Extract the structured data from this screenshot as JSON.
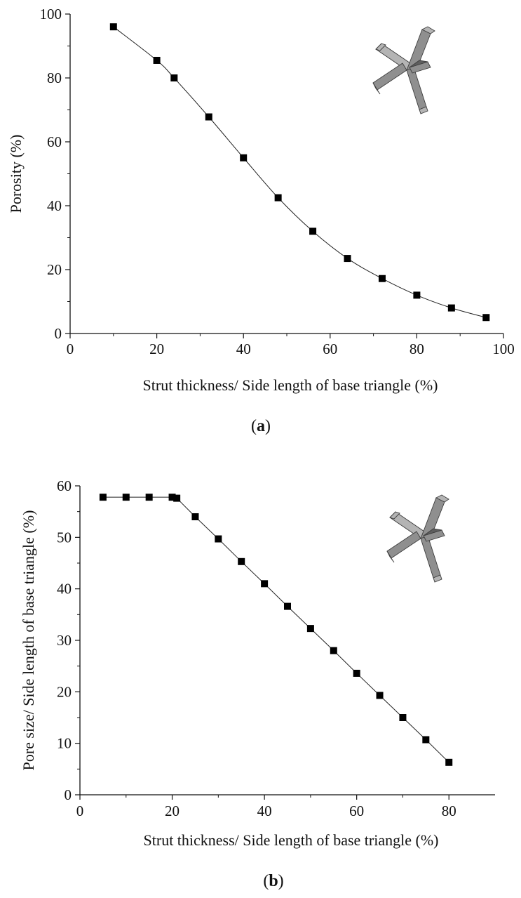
{
  "figure": {
    "caption_a": "a",
    "caption_b": "b"
  },
  "colors": {
    "axis": "#111111",
    "marker": "#000000",
    "line": "#222222",
    "strut_light": "#b4b4b4",
    "strut_mid": "#8f8f8f",
    "strut_dark": "#5e5e5e"
  },
  "chart_data": [
    {
      "id": "a",
      "type": "line",
      "marker": "square",
      "smooth": true,
      "title": "",
      "xlabel": "Strut thickness/ Side length of base triangle (%)",
      "ylabel": "Porosity (%)",
      "xlim": [
        0,
        100
      ],
      "ylim": [
        0,
        100
      ],
      "xticks": [
        0,
        20,
        40,
        60,
        80,
        100
      ],
      "yticks": [
        0,
        20,
        40,
        60,
        80,
        100
      ],
      "grid": false,
      "inset": "strut-unit-icon",
      "series": [
        {
          "x": [
            10,
            20,
            24,
            32,
            40,
            48,
            56,
            64,
            72,
            80,
            88,
            96
          ],
          "y": [
            96,
            85.5,
            80,
            67.8,
            55,
            42.5,
            32,
            23.5,
            17.2,
            12,
            8,
            5
          ]
        }
      ]
    },
    {
      "id": "b",
      "type": "line",
      "marker": "square",
      "smooth": false,
      "title": "",
      "xlabel": "Strut thickness/ Side length of base triangle (%)",
      "ylabel": "Pore size/ Side length of base triangle (%)",
      "xlim": [
        0,
        90
      ],
      "ylim": [
        0,
        60
      ],
      "xticks": [
        0,
        20,
        40,
        60,
        80
      ],
      "yticks": [
        0,
        10,
        20,
        30,
        40,
        50,
        60
      ],
      "grid": false,
      "inset": "strut-unit-icon",
      "series": [
        {
          "x": [
            5,
            10,
            15,
            20,
            21,
            25,
            30,
            35,
            40,
            45,
            50,
            55,
            60,
            65,
            70,
            75,
            80
          ],
          "y": [
            57.8,
            57.8,
            57.8,
            57.8,
            57.6,
            54,
            49.7,
            45.3,
            41,
            36.6,
            32.3,
            28,
            23.6,
            19.3,
            15,
            10.7,
            6.3
          ]
        }
      ]
    }
  ]
}
